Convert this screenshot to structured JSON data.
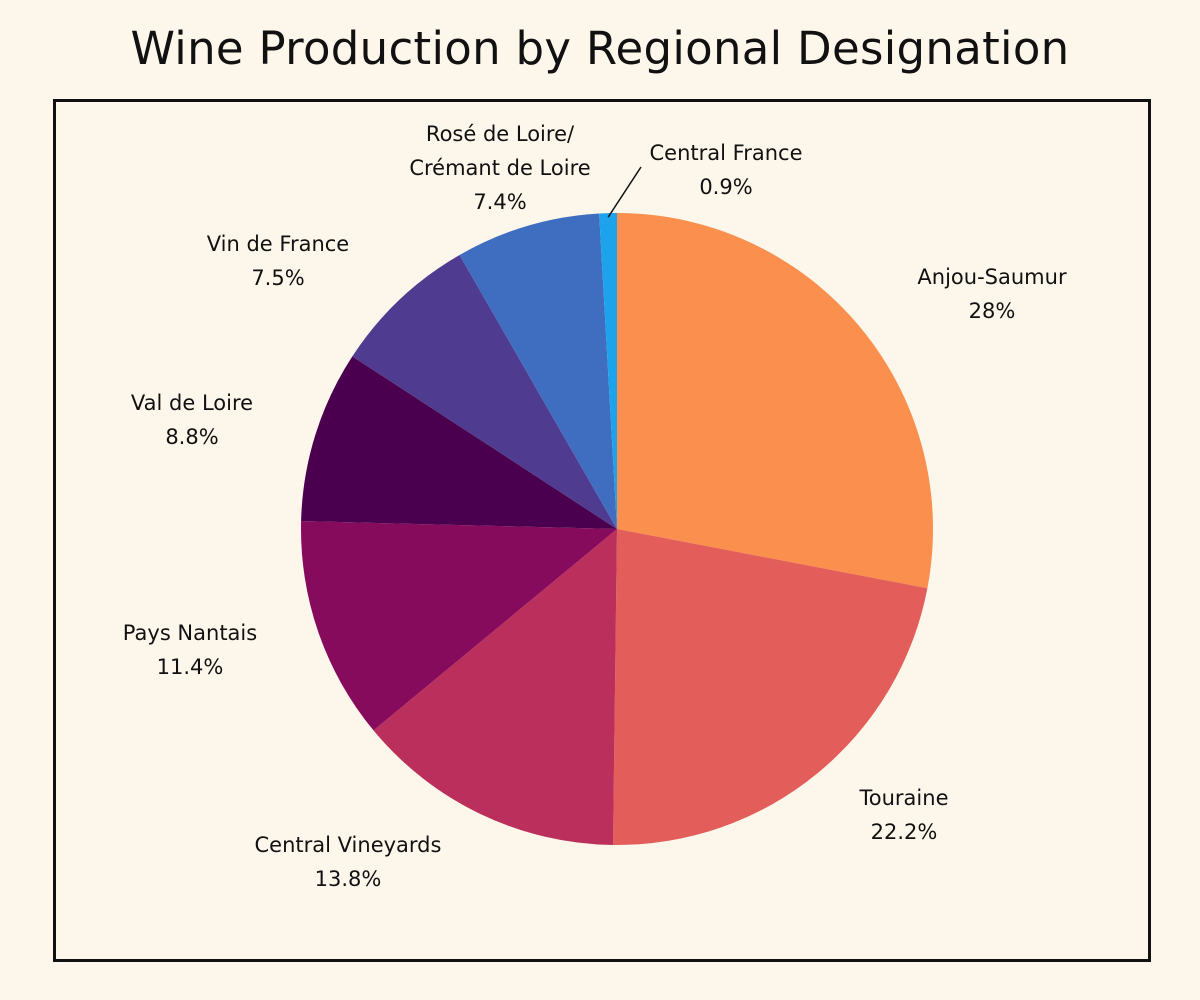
{
  "chart_data": {
    "type": "pie",
    "title": "Wine Production by Regional Designation",
    "start_angle_deg": 0,
    "direction": "clockwise",
    "slices": [
      {
        "label": "Anjou-Saumur",
        "value": 28,
        "value_label": "28%",
        "color": "#fb8f4d"
      },
      {
        "label": "Touraine",
        "value": 22.2,
        "value_label": "22.2%",
        "color": "#e35e5a"
      },
      {
        "label": "Central Vineyards",
        "value": 13.8,
        "value_label": "13.8%",
        "color": "#ba2f5b"
      },
      {
        "label": "Pays Nantais",
        "value": 11.4,
        "value_label": "11.4%",
        "color": "#870b5c"
      },
      {
        "label": "Val de Loire",
        "value": 8.8,
        "value_label": "8.8%",
        "color": "#4a004f"
      },
      {
        "label": "Vin de France",
        "value": 7.5,
        "value_label": "7.5%",
        "color": "#4f3b8f"
      },
      {
        "label": "Rosé de Loire/ Crémant de Loire",
        "label_lines": [
          "Rosé de Loire/",
          "Crémant de Loire"
        ],
        "value": 7.4,
        "value_label": "7.4%",
        "color": "#3f6ec1"
      },
      {
        "label": "Central France",
        "value": 0.9,
        "value_label": "0.9%",
        "color": "#1ca3ec"
      }
    ]
  }
}
